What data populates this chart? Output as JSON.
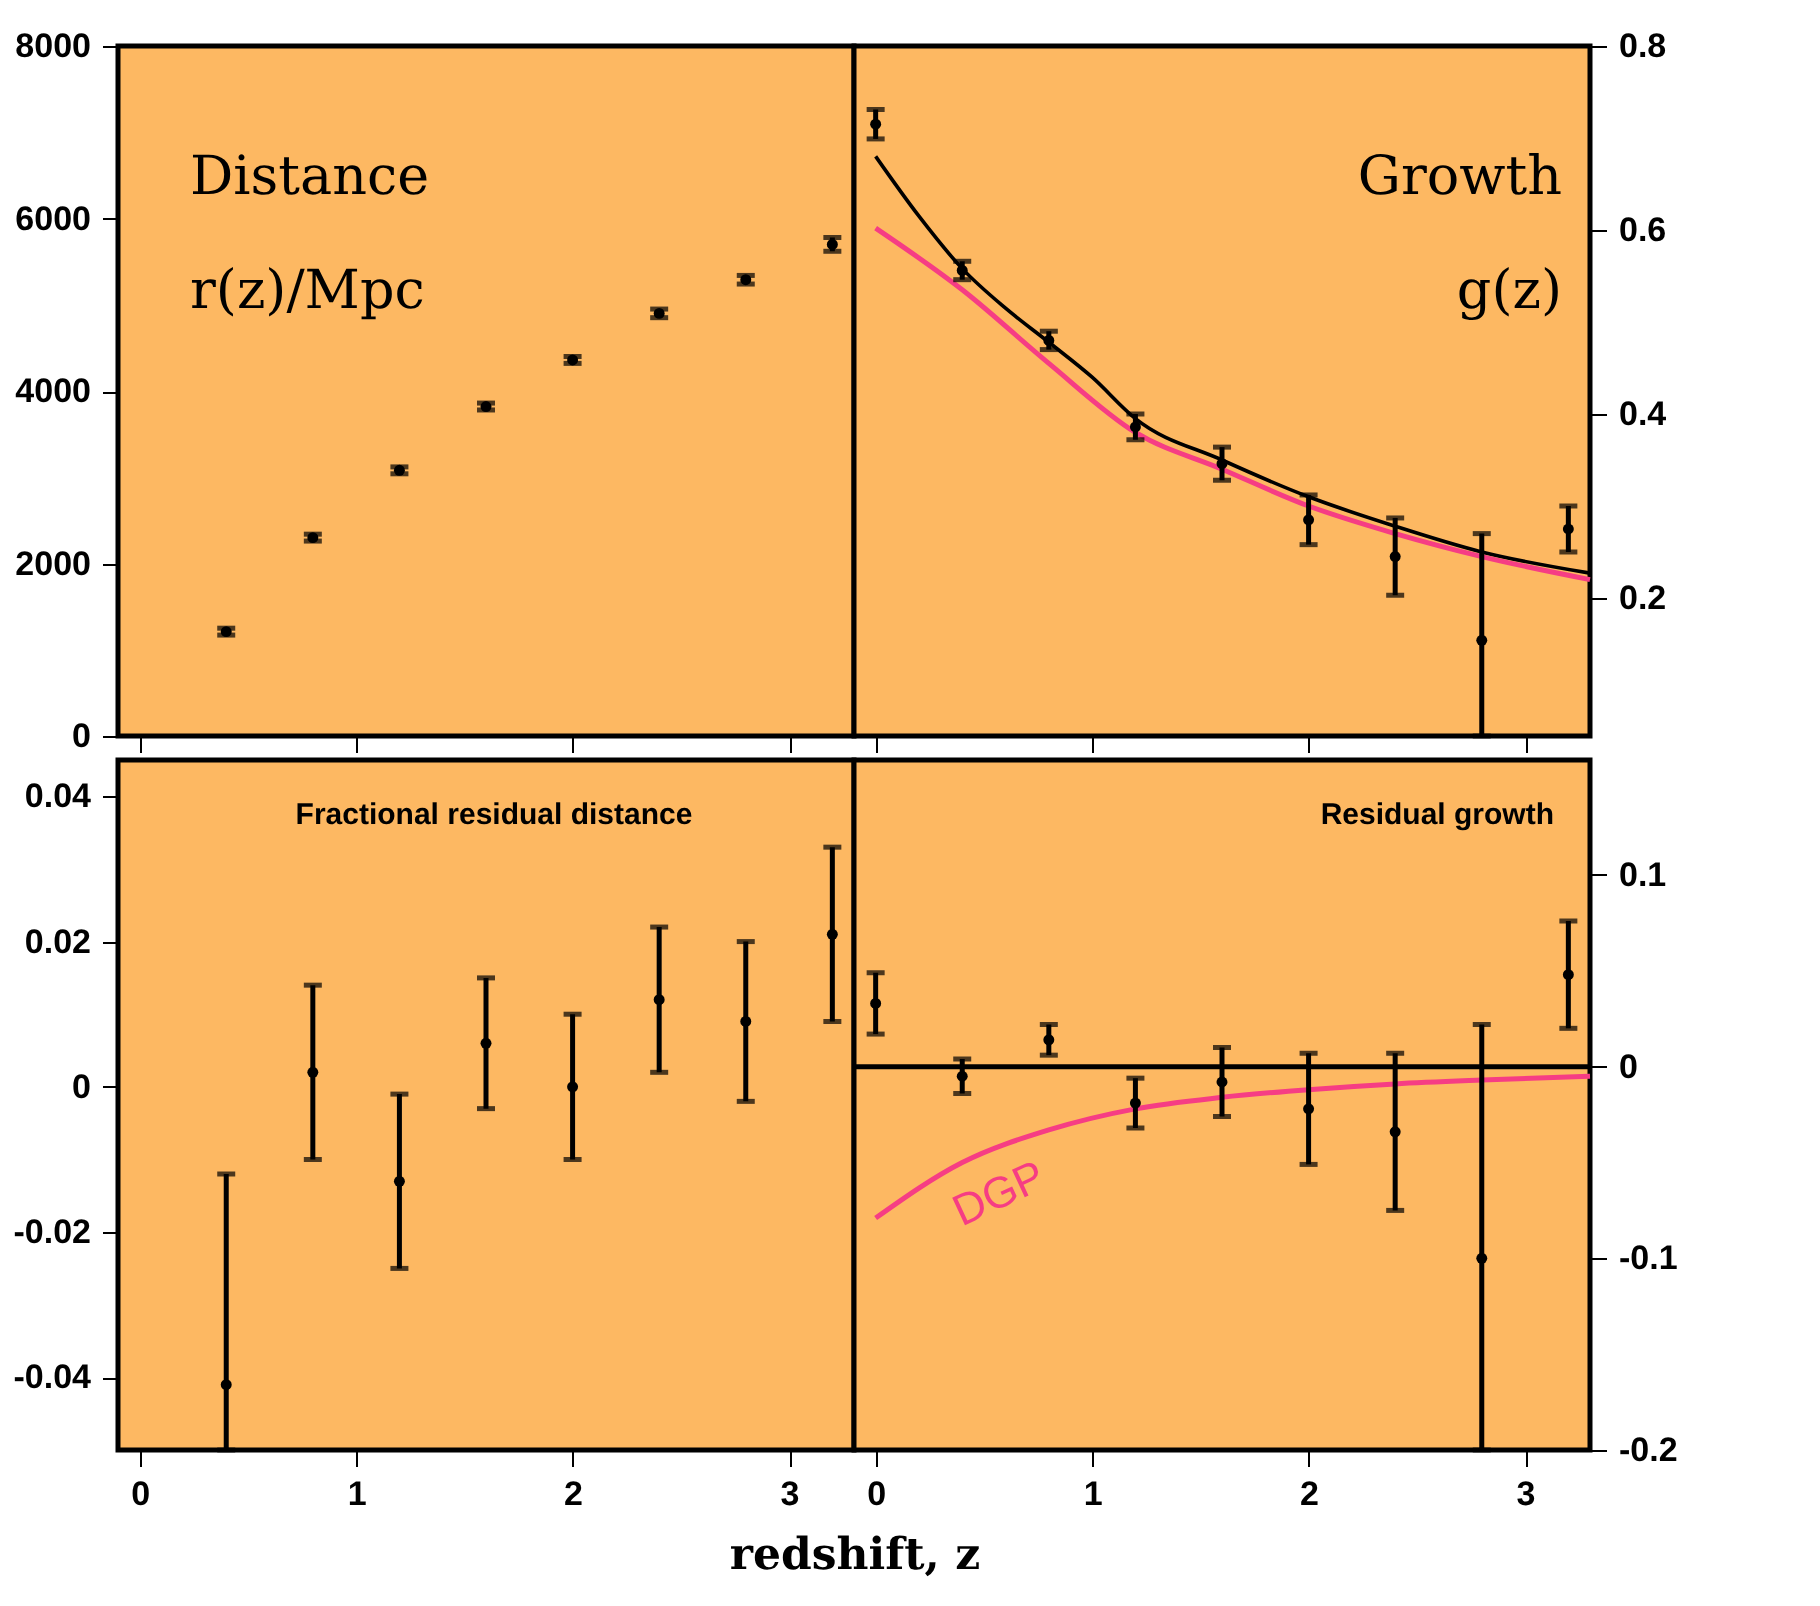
{
  "chart_data": [
    {
      "type": "scatter",
      "title": "Distance",
      "subtitle": "r(z)/Mpc",
      "xlim": [
        -0.1,
        3.3
      ],
      "xticks": [
        0,
        1,
        2,
        3
      ],
      "ylim": [
        0,
        8000
      ],
      "yticks": [
        0,
        2000,
        4000,
        6000,
        8000
      ],
      "tick_labels": "y",
      "series": [
        {
          "color": "#000000",
          "marker": "circle",
          "x": [
            0.4,
            0.8,
            1.2,
            1.6,
            2.0,
            2.4,
            2.8,
            3.2
          ],
          "values": [
            1210,
            2300,
            3080,
            3820,
            4360,
            4900,
            5290,
            5700
          ],
          "errors": [
            40,
            40,
            40,
            40,
            40,
            50,
            50,
            80
          ]
        }
      ]
    },
    {
      "type": "scatter",
      "title": "Growth",
      "subtitle": "g(z)",
      "xlim": [
        -0.1,
        3.3
      ],
      "xticks": [
        0,
        1,
        2,
        3
      ],
      "ylim": [
        0.05,
        0.8
      ],
      "yticks": [
        0.2,
        0.4,
        0.6,
        0.8
      ],
      "tick_labels": "y",
      "series": [
        {
          "type": "line",
          "color": "#000000",
          "x": [
            0,
            0.2,
            0.4,
            0.6,
            0.8,
            1.0,
            1.2,
            1.6,
            2.0,
            2.4,
            2.8,
            3.3
          ],
          "values": [
            0.68,
            0.615,
            0.558,
            0.515,
            0.478,
            0.44,
            0.395,
            0.35,
            0.31,
            0.278,
            0.25,
            0.227
          ]
        },
        {
          "type": "line",
          "color": "#f63d84",
          "x": [
            0,
            0.4,
            0.8,
            1.2,
            1.6,
            2.0,
            2.4,
            2.8,
            3.3
          ],
          "values": [
            0.602,
            0.535,
            0.455,
            0.38,
            0.34,
            0.3,
            0.27,
            0.245,
            0.22
          ]
        },
        {
          "color": "#000000",
          "marker": "circle",
          "x": [
            0,
            0.4,
            0.8,
            1.2,
            1.6,
            2.0,
            2.4,
            2.8,
            3.2
          ],
          "values": [
            0.715,
            0.556,
            0.48,
            0.386,
            0.346,
            0.285,
            0.245,
            0.154,
            0.275
          ],
          "errors": [
            0.016,
            0.01,
            0.01,
            0.014,
            0.018,
            0.027,
            0.042,
            [
              0.05,
              0.27
            ],
            0.025
          ]
        }
      ]
    },
    {
      "type": "scatter",
      "title": "Fractional residual distance",
      "xlabel": "redshift, z",
      "xlim": [
        -0.1,
        3.3
      ],
      "xticks": [
        0,
        1,
        2,
        3
      ],
      "ylim": [
        -0.05,
        0.045
      ],
      "yticks": [
        -0.04,
        -0.02,
        0,
        0.02,
        0.04
      ],
      "series": [
        {
          "color": "#000000",
          "marker": "circle",
          "x": [
            0.4,
            0.8,
            1.2,
            1.6,
            2.0,
            2.4,
            2.8,
            3.2
          ],
          "values": [
            -0.041,
            0.002,
            -0.013,
            0.006,
            0,
            0.012,
            0.009,
            0.021
          ],
          "errors": [
            [
              -0.05,
              -0.012
            ],
            0.012,
            0.012,
            0.009,
            0.01,
            0.01,
            0.011,
            0.012
          ]
        }
      ]
    },
    {
      "type": "scatter",
      "title": "Residual growth",
      "xlim": [
        -0.1,
        3.3
      ],
      "xticks": [
        0,
        1,
        2,
        3
      ],
      "ylim": [
        -0.2,
        0.16
      ],
      "yticks": [
        -0.2,
        -0.1,
        0,
        0.1
      ],
      "ref_lines": [
        {
          "axis": "y",
          "value": 0,
          "color": "#000000"
        }
      ],
      "series": [
        {
          "type": "line",
          "name": "DGP",
          "color": "#f63d84",
          "x": [
            0,
            0.4,
            0.8,
            1.2,
            1.6,
            2.0,
            2.4,
            2.8,
            3.3
          ],
          "values": [
            -0.079,
            -0.05,
            -0.033,
            -0.022,
            -0.016,
            -0.012,
            -0.009,
            -0.007,
            -0.005
          ]
        },
        {
          "color": "#000000",
          "marker": "circle",
          "x": [
            0,
            0.4,
            0.8,
            1.2,
            1.6,
            2.0,
            2.4,
            2.8,
            3.2
          ],
          "values": [
            0.033,
            -0.005,
            0.014,
            -0.019,
            -0.008,
            -0.022,
            -0.034,
            -0.1,
            0.048
          ],
          "errors": [
            0.016,
            0.009,
            0.008,
            0.013,
            0.018,
            0.029,
            0.041,
            [
              -0.2,
              0.022
            ],
            0.028
          ]
        }
      ]
    }
  ]
}
